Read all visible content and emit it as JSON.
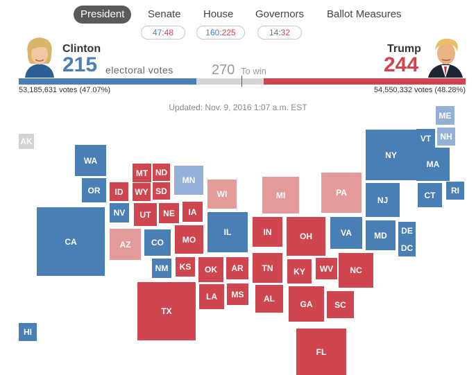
{
  "nav": {
    "tabs": [
      {
        "label": "President",
        "active": true
      },
      {
        "label": "Senate"
      },
      {
        "label": "House"
      },
      {
        "label": "Governors"
      },
      {
        "label": "Ballot Measures"
      }
    ],
    "senate": {
      "dem": "47",
      "rep": "48",
      "sep": ":"
    },
    "house": {
      "dem": "160",
      "rep": "225",
      "sep": ":"
    },
    "governors": {
      "dem": "14",
      "rep": "32",
      "sep": ":"
    }
  },
  "header": {
    "clinton": {
      "name": "Clinton",
      "ev": "215",
      "popular": "53,185,631 votes (47.07%)"
    },
    "trump": {
      "name": "Trump",
      "ev": "244",
      "popular": "54,550,332 votes (48.28%)"
    },
    "ev_label": "electoral votes",
    "to_win_num": "270",
    "to_win_label": "To win",
    "bar": {
      "dem_fraction": 0.398,
      "rep_fraction": 0.452,
      "win_fraction": 0.5
    }
  },
  "updated": "Updated: Nov. 9, 2016 1:07 a.m. EST",
  "colors": {
    "dem": "#4a7fb5",
    "rep": "#d0464e",
    "lean_dem": "#94b0d6",
    "lean_rep": "#e39a98",
    "undecided": "#d3d3d3"
  },
  "states": [
    {
      "abbr": "AK",
      "status": "undecided"
    },
    {
      "abbr": "HI",
      "status": "dem"
    },
    {
      "abbr": "WA",
      "status": "dem"
    },
    {
      "abbr": "OR",
      "status": "dem"
    },
    {
      "abbr": "CA",
      "status": "dem"
    },
    {
      "abbr": "NV",
      "status": "dem"
    },
    {
      "abbr": "ID",
      "status": "rep"
    },
    {
      "abbr": "MT",
      "status": "rep"
    },
    {
      "abbr": "ND",
      "status": "rep"
    },
    {
      "abbr": "WY",
      "status": "rep"
    },
    {
      "abbr": "SD",
      "status": "rep"
    },
    {
      "abbr": "UT",
      "status": "rep"
    },
    {
      "abbr": "NE",
      "status": "rep"
    },
    {
      "abbr": "AZ",
      "status": "lean_rep"
    },
    {
      "abbr": "CO",
      "status": "dem"
    },
    {
      "abbr": "NM",
      "status": "dem"
    },
    {
      "abbr": "KS",
      "status": "rep"
    },
    {
      "abbr": "OK",
      "status": "rep"
    },
    {
      "abbr": "TX",
      "status": "rep"
    },
    {
      "abbr": "MN",
      "status": "lean_dem"
    },
    {
      "abbr": "IA",
      "status": "rep"
    },
    {
      "abbr": "MO",
      "status": "rep"
    },
    {
      "abbr": "AR",
      "status": "rep"
    },
    {
      "abbr": "LA",
      "status": "rep"
    },
    {
      "abbr": "MS",
      "status": "rep"
    },
    {
      "abbr": "WI",
      "status": "lean_rep"
    },
    {
      "abbr": "IL",
      "status": "dem"
    },
    {
      "abbr": "MI",
      "status": "lean_rep"
    },
    {
      "abbr": "IN",
      "status": "rep"
    },
    {
      "abbr": "TN",
      "status": "rep"
    },
    {
      "abbr": "AL",
      "status": "rep"
    },
    {
      "abbr": "OH",
      "status": "rep"
    },
    {
      "abbr": "KY",
      "status": "rep"
    },
    {
      "abbr": "GA",
      "status": "rep"
    },
    {
      "abbr": "FL",
      "status": "rep"
    },
    {
      "abbr": "WV",
      "status": "rep"
    },
    {
      "abbr": "SC",
      "status": "rep"
    },
    {
      "abbr": "NC",
      "status": "rep"
    },
    {
      "abbr": "VA",
      "status": "dem"
    },
    {
      "abbr": "PA",
      "status": "lean_rep"
    },
    {
      "abbr": "NY",
      "status": "dem"
    },
    {
      "abbr": "NJ",
      "status": "dem"
    },
    {
      "abbr": "MD",
      "status": "dem"
    },
    {
      "abbr": "DE",
      "status": "dem"
    },
    {
      "abbr": "DC",
      "status": "dem"
    },
    {
      "abbr": "ME",
      "status": "lean_dem"
    },
    {
      "abbr": "VT",
      "status": "dem"
    },
    {
      "abbr": "NH",
      "status": "lean_dem"
    },
    {
      "abbr": "MA",
      "status": "dem"
    },
    {
      "abbr": "CT",
      "status": "dem"
    },
    {
      "abbr": "RI",
      "status": "dem"
    }
  ]
}
